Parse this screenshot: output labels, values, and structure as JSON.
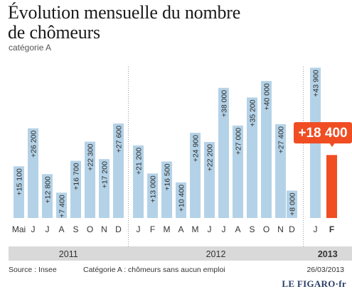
{
  "header": {
    "title_line1": "Évolution mensuelle du nombre",
    "title_line2": "de chômeurs",
    "subtitle": "catégorie A"
  },
  "chart_data": {
    "type": "bar",
    "title": "Évolution mensuelle du nombre de chômeurs",
    "subtitle": "catégorie A",
    "categories": [
      "Mai",
      "J",
      "J",
      "A",
      "S",
      "O",
      "N",
      "D",
      "J",
      "F",
      "M",
      "A",
      "M",
      "J",
      "J",
      "A",
      "S",
      "O",
      "N",
      "D",
      "J",
      "F"
    ],
    "values": [
      15100,
      26200,
      12800,
      7400,
      16700,
      22300,
      17200,
      27600,
      21200,
      13000,
      16500,
      10400,
      24900,
      22200,
      38000,
      27000,
      35200,
      40000,
      27400,
      8000,
      43900,
      18400
    ],
    "value_labels": [
      "+15 100",
      "+26 200",
      "+12 800",
      "+7 400",
      "+16 700",
      "+22 300",
      "+17 200",
      "+27 600",
      "+21 200",
      "+13 000",
      "+16 500",
      "+10 400",
      "+24 900",
      "+22 200",
      "+38 000",
      "+27 000",
      "+35 200",
      "+40 000",
      "+27 400",
      "+8 000",
      "+43 900",
      "+18 400"
    ],
    "highlight_index": 21,
    "year_groups": [
      {
        "label": "2011",
        "start": 0,
        "end": 7
      },
      {
        "label": "2012",
        "start": 8,
        "end": 19
      },
      {
        "label": "2013",
        "start": 20,
        "end": 21
      }
    ],
    "ylim": [
      0,
      45000
    ],
    "grid": false,
    "colors": {
      "bar": "#b4d2e7",
      "highlight": "#f04d23",
      "year_band": "#d9d9d9"
    }
  },
  "footer": {
    "source": "Source : Insee",
    "note": "Catégorie A : chômeurs sans aucun emploi",
    "date": "26/03/2013",
    "logo": "LE FIGARO·fr"
  }
}
